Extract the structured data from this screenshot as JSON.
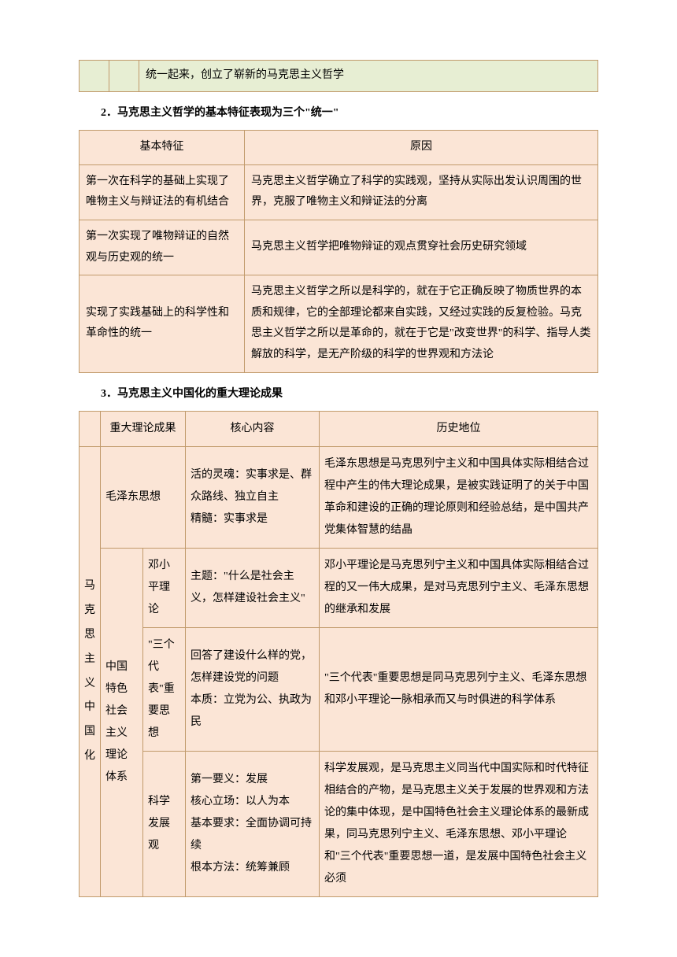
{
  "colors": {
    "border": "#c19a6b",
    "green_bg": "#e7eed3",
    "peach_bg": "#fbe5d6",
    "text": "#000000",
    "page_bg": "#ffffff"
  },
  "typography": {
    "font_family": "SimSun",
    "font_size_pt": 10.5,
    "line_height": 1.9
  },
  "top_fragment": "统一起来，创立了崭新的马克思主义哲学",
  "heading2": "2．马克思主义哲学的基本特征表现为三个\"统一\"",
  "table2": {
    "header": {
      "left": "基本特征",
      "right": "原因"
    },
    "rows": [
      {
        "left": "第一次在科学的基础上实现了唯物主义与辩证法的有机结合",
        "right": "马克思主义哲学确立了科学的实践观，坚持从实际出发认识周围的世界，克服了唯物主义和辩证法的分离"
      },
      {
        "left": "第一次实现了唯物辩证的自然观与历史观的统一",
        "right": "马克思主义哲学把唯物辩证的观点贯穿社会历史研究领域"
      },
      {
        "left": "实现了实践基础上的科学性和革命性的统一",
        "right": "马克思主义哲学之所以是科学的，就在于它正确反映了物质世界的本质和规律，它的全部理论都来自实践，又经过实践的反复检验。马克思主义哲学之所以是革命的，就在于它是\"改变世界\"的科学、指导人类解放的科学，是无产阶级的科学的世界观和方法论"
      }
    ]
  },
  "heading3": "3．马克思主义中国化的重大理论成果",
  "table3": {
    "header": {
      "c2": "重大理论成果",
      "c3": "核心内容",
      "c4": "历史地位"
    },
    "vlabel": "马克思主义中国化",
    "r1": {
      "name": "毛泽东思想",
      "core": "活的灵魂：实事求是、群众路线、独立自主\n精髓：实事求是",
      "pos": "毛泽东思想是马克思列宁主义和中国具体实际相结合过程中产生的伟大理论成果，是被实践证明了的关于中国革命和建设的正确的理论原则和经验总结，是中国共产党集体智慧的结晶"
    },
    "group2": "中国特色社会主义理论体系",
    "r2a": {
      "name": "邓小平理论",
      "core": "主题：\"什么是社会主义，怎样建设社会主义\"",
      "pos": "邓小平理论是马克思列宁主义和中国具体实际相结合过程的又一伟大成果，是对马克思列宁主义、毛泽东思想的继承和发展"
    },
    "r2b": {
      "name": "\"三个代表\"重要思想",
      "core": "回答了建设什么样的党，怎样建设党的问题\n本质：立党为公、执政为民",
      "pos": "\"三个代表\"重要思想是同马克思列宁主义、毛泽东思想和邓小平理论一脉相承而又与时俱进的科学体系"
    },
    "r2c": {
      "name": "科学发展观",
      "core": "第一要义：发展\n核心立场：以人为本\n基本要求：全面协调可持续\n根本方法：统筹兼顾",
      "pos": "科学发展观，是马克思主义同当代中国实际和时代特征相结合的产物，是马克思主义关于发展的世界观和方法论的集中体现，是中国特色社会主义理论体系的最新成果，同马克思列宁主义、毛泽东思想、邓小平理论和\"三个代表\"重要思想一道，是发展中国特色社会主义必须"
    }
  }
}
